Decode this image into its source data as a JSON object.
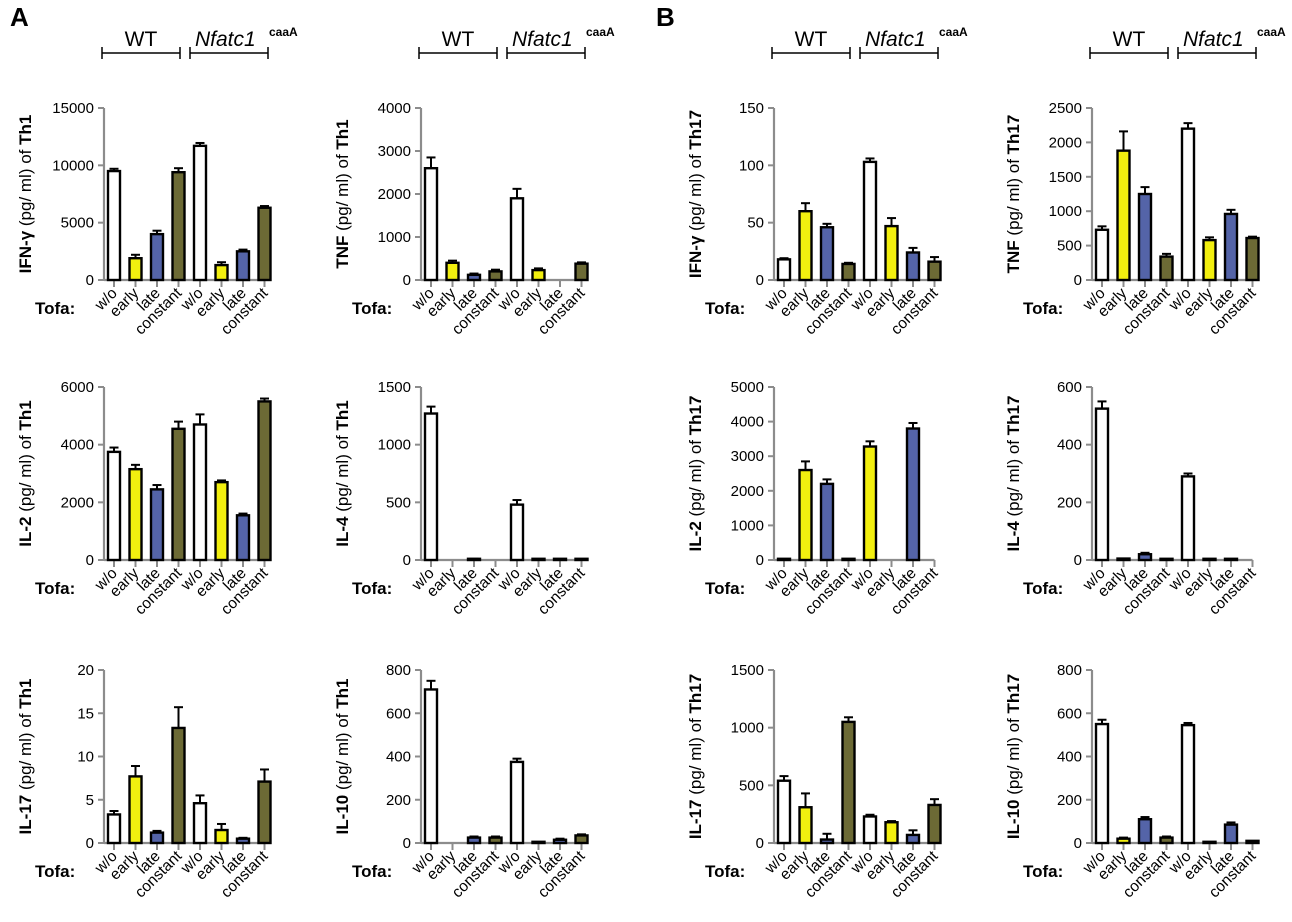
{
  "panel_labels": [
    "A",
    "B"
  ],
  "group_labels": {
    "wt": "WT",
    "mut_italic": "Nfatc1",
    "mut_super": "caaA"
  },
  "tofa_label": "Tofa:",
  "categories": [
    "w/o",
    "early",
    "late",
    "constant",
    "w/o",
    "early",
    "late",
    "constant"
  ],
  "colors": {
    "w/o": "#ffffff",
    "early": "#f2ef0f",
    "late": "#5464a8",
    "constant": "#6c6a35",
    "axis": "#8c8c8c",
    "bar_edge": "#000000"
  },
  "chart_data": [
    {
      "type": "bar",
      "panel": "A",
      "cytokine": "IFN-γ",
      "cell": "Th1",
      "ylabel_rest": " (pg/ ml) of ",
      "ylim": [
        0,
        15000
      ],
      "yticks": [
        0,
        5000,
        10000,
        15000
      ],
      "values": [
        9500,
        1900,
        4000,
        9400,
        11700,
        1300,
        2500,
        6300
      ],
      "errors": [
        200,
        300,
        300,
        350,
        250,
        250,
        150,
        150
      ]
    },
    {
      "type": "bar",
      "panel": "A",
      "cytokine": "TNF",
      "cell": "Th1",
      "ylabel_rest": " (pg/ ml) of ",
      "ylim": [
        0,
        4000
      ],
      "yticks": [
        0,
        1000,
        2000,
        3000,
        4000
      ],
      "values": [
        2600,
        400,
        120,
        200,
        1900,
        230,
        0,
        380
      ],
      "errors": [
        250,
        50,
        30,
        40,
        220,
        40,
        0,
        30
      ]
    },
    {
      "type": "bar",
      "panel": "B",
      "cytokine": "IFN-γ",
      "cell": "Th17",
      "ylabel_rest": " (pg/ ml) of ",
      "ylim": [
        0,
        150
      ],
      "yticks": [
        0,
        50,
        100,
        150
      ],
      "values": [
        18,
        60,
        46,
        14,
        103,
        47,
        24,
        16
      ],
      "errors": [
        1,
        7,
        3,
        1,
        3,
        7,
        4,
        4
      ]
    },
    {
      "type": "bar",
      "panel": "B",
      "cytokine": "TNF",
      "cell": "Th17",
      "ylabel_rest": " (pg/ ml) of ",
      "ylim": [
        0,
        2500
      ],
      "yticks": [
        0,
        500,
        1000,
        1500,
        2000,
        2500
      ],
      "values": [
        730,
        1880,
        1250,
        340,
        2200,
        580,
        960,
        610
      ],
      "errors": [
        50,
        280,
        100,
        40,
        80,
        40,
        60,
        20
      ]
    },
    {
      "type": "bar",
      "panel": "A",
      "cytokine": "IL-2",
      "cell": "Th1",
      "ylabel_rest": " (pg/ ml) of ",
      "ylim": [
        0,
        6000
      ],
      "yticks": [
        0,
        2000,
        4000,
        6000
      ],
      "values": [
        3750,
        3150,
        2450,
        4550,
        4700,
        2700,
        1550,
        5500
      ],
      "errors": [
        150,
        150,
        150,
        250,
        350,
        60,
        60,
        100
      ]
    },
    {
      "type": "bar",
      "panel": "A",
      "cytokine": "IL-4",
      "cell": "Th1",
      "ylabel_rest": " (pg/ ml) of ",
      "ylim": [
        0,
        1500
      ],
      "yticks": [
        0,
        500,
        1000,
        1500
      ],
      "values": [
        1270,
        0,
        8,
        0,
        480,
        3,
        3,
        3
      ],
      "errors": [
        60,
        0,
        2,
        0,
        40,
        0,
        0,
        0
      ]
    },
    {
      "type": "bar",
      "panel": "B",
      "cytokine": "IL-2",
      "cell": "Th17",
      "ylabel_rest": " (pg/ ml) of ",
      "ylim": [
        0,
        5000
      ],
      "yticks": [
        0,
        1000,
        2000,
        3000,
        4000,
        5000
      ],
      "values": [
        10,
        2600,
        2200,
        10,
        3280,
        0,
        3800,
        0
      ],
      "errors": [
        0,
        250,
        130,
        0,
        150,
        0,
        160,
        0
      ],
      "colors_override": [
        "#ffffff",
        "#f2ef0f",
        "#5464a8",
        "#6c6a35",
        "#f2ef0f",
        "#ffffff",
        "#5464a8",
        "#ffffff"
      ]
    },
    {
      "type": "bar",
      "panel": "B",
      "cytokine": "IL-4",
      "cell": "Th17",
      "ylabel_rest": " (pg/ ml) of ",
      "ylim": [
        0,
        600
      ],
      "yticks": [
        0,
        200,
        400,
        600
      ],
      "values": [
        525,
        5,
        20,
        3,
        290,
        3,
        3,
        0
      ],
      "errors": [
        25,
        0,
        5,
        0,
        10,
        0,
        0,
        0
      ]
    },
    {
      "type": "bar",
      "panel": "A",
      "cytokine": "IL-17",
      "cell": "Th1",
      "ylabel_rest": " (pg/ ml) of ",
      "ylim": [
        0,
        20
      ],
      "yticks": [
        0,
        5,
        10,
        15,
        20
      ],
      "values": [
        3.3,
        7.7,
        1.2,
        13.3,
        4.6,
        1.5,
        0.5,
        7.1
      ],
      "errors": [
        0.4,
        1.2,
        0.2,
        2.4,
        0.9,
        0.7,
        0.1,
        1.4
      ]
    },
    {
      "type": "bar",
      "panel": "A",
      "cytokine": "IL-10",
      "cell": "Th1",
      "ylabel_rest": " (pg/ ml) of ",
      "ylim": [
        0,
        800
      ],
      "yticks": [
        0,
        200,
        400,
        600,
        800
      ],
      "values": [
        710,
        0,
        25,
        25,
        375,
        3,
        15,
        35
      ],
      "errors": [
        40,
        0,
        5,
        5,
        15,
        0,
        5,
        5
      ]
    },
    {
      "type": "bar",
      "panel": "B",
      "cytokine": "IL-17",
      "cell": "Th17",
      "ylabel_rest": " (pg/ ml) of ",
      "ylim": [
        0,
        1500
      ],
      "yticks": [
        0,
        500,
        1000,
        1500
      ],
      "values": [
        540,
        310,
        30,
        1050,
        230,
        180,
        70,
        330
      ],
      "errors": [
        40,
        120,
        50,
        40,
        15,
        10,
        40,
        50
      ]
    },
    {
      "type": "bar",
      "panel": "B",
      "cytokine": "IL-10",
      "cell": "Th17",
      "ylabel_rest": " (pg/ ml) of ",
      "ylim": [
        0,
        800
      ],
      "yticks": [
        0,
        200,
        400,
        600,
        800
      ],
      "values": [
        550,
        20,
        110,
        25,
        545,
        5,
        85,
        10
      ],
      "errors": [
        20,
        5,
        10,
        5,
        10,
        0,
        10,
        0
      ]
    }
  ]
}
